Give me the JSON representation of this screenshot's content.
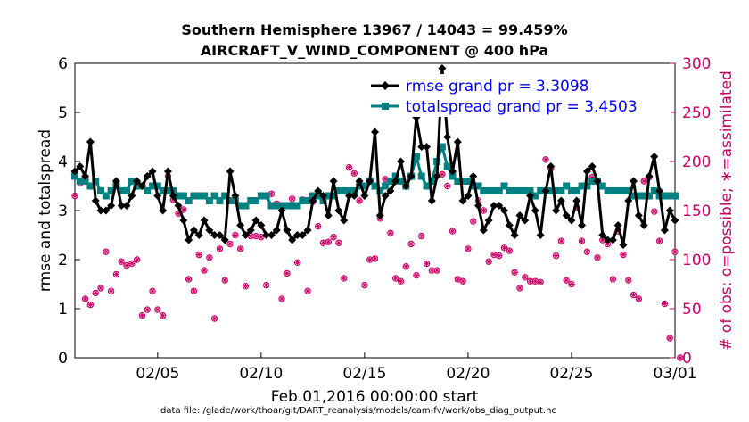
{
  "chart_data": {
    "type": "line",
    "title": "Southern Hemisphere 13967 / 14043 = 99.459%",
    "subtitle": "AIRCRAFT_V_WIND_COMPONENT @ 400 hPa",
    "ylabel": "rmse and totalspread",
    "ylabel_right": "# of obs: o=possible; ∗=assimilated",
    "xlabel": "Feb.01,2016 00:00:00 start",
    "footer": "data file: /glade/work/thoar/git/DART_reanalysis/models/cam-fv/work/obs_diag_output.nc",
    "x_range": [
      1,
      30
    ],
    "x_ticks": [
      {
        "x": 5,
        "label": "02/05"
      },
      {
        "x": 10,
        "label": "02/10"
      },
      {
        "x": 15,
        "label": "02/15"
      },
      {
        "x": 20,
        "label": "02/20"
      },
      {
        "x": 25,
        "label": "02/25"
      },
      {
        "x": 30,
        "label": "03/01"
      }
    ],
    "ylim": [
      0,
      6
    ],
    "y_ticks": [
      "0",
      "1",
      "2",
      "3",
      "4",
      "5",
      "6"
    ],
    "ylim_right": [
      0,
      300
    ],
    "y_ticks_right": [
      "0",
      "50",
      "100",
      "150",
      "200",
      "250",
      "300"
    ],
    "legend_position": "top-right",
    "series": [
      {
        "name": "rmse grand pr = 3.3098",
        "color": "#000000",
        "marker": "diamond",
        "values": [
          3.8,
          3.9,
          3.7,
          4.4,
          3.2,
          3.0,
          3.0,
          3.1,
          3.6,
          3.1,
          3.1,
          3.3,
          3.6,
          3.5,
          3.7,
          3.8,
          3.3,
          3.0,
          3.8,
          3.3,
          3.1,
          2.8,
          2.4,
          2.6,
          2.5,
          2.8,
          2.6,
          2.5,
          2.5,
          2.4,
          3.8,
          3.3,
          2.7,
          2.5,
          2.6,
          2.8,
          2.7,
          2.5,
          2.5,
          2.6,
          3.0,
          2.6,
          2.4,
          2.5,
          2.5,
          2.6,
          3.2,
          3.4,
          3.3,
          2.9,
          3.6,
          3.0,
          2.8,
          3.3,
          3.3,
          3.6,
          3.3,
          3.6,
          4.6,
          2.9,
          3.3,
          3.4,
          3.6,
          4.0,
          3.5,
          3.7,
          4.9,
          4.3,
          4.3,
          3.2,
          3.7,
          5.9,
          4.5,
          3.8,
          4.4,
          3.2,
          3.3,
          3.7,
          3.1,
          2.6,
          2.8,
          3.1,
          3.1,
          3.0,
          2.7,
          2.5,
          2.9,
          2.8,
          3.3,
          3.0,
          2.5,
          3.4,
          3.9,
          3.0,
          3.2,
          2.9,
          2.8,
          3.2,
          2.7,
          3.8,
          3.9,
          3.6,
          2.5,
          2.4,
          2.4,
          2.7,
          2.3,
          3.2,
          3.6,
          2.9,
          2.7,
          3.7,
          4.1,
          3.4,
          2.6,
          3.0,
          2.8
        ]
      },
      {
        "name": "totalspread grand pr = 3.4503",
        "color": "#008080",
        "marker": "square",
        "values": [
          3.7,
          3.6,
          3.6,
          3.5,
          3.6,
          3.4,
          3.3,
          3.4,
          3.5,
          3.4,
          3.4,
          3.6,
          3.5,
          3.5,
          3.4,
          3.5,
          3.5,
          3.4,
          3.4,
          3.4,
          3.3,
          3.3,
          3.2,
          3.3,
          3.3,
          3.3,
          3.2,
          3.3,
          3.2,
          3.3,
          3.2,
          3.2,
          3.1,
          3.1,
          3.2,
          3.2,
          3.3,
          3.3,
          3.1,
          3.1,
          3.1,
          3.1,
          3.1,
          3.1,
          3.2,
          3.2,
          3.3,
          3.3,
          3.2,
          3.3,
          3.3,
          3.4,
          3.4,
          3.4,
          3.4,
          3.5,
          3.5,
          3.6,
          3.5,
          3.4,
          3.5,
          3.6,
          3.7,
          3.6,
          3.5,
          3.7,
          4.1,
          3.7,
          3.5,
          3.6,
          4.0,
          4.3,
          3.9,
          3.7,
          3.6,
          3.6,
          3.6,
          3.5,
          3.5,
          3.4,
          3.4,
          3.4,
          3.4,
          3.5,
          3.4,
          3.4,
          3.4,
          3.4,
          3.4,
          3.3,
          3.4,
          3.4,
          3.4,
          3.4,
          3.4,
          3.5,
          3.4,
          3.4,
          3.5,
          3.5,
          3.6,
          3.6,
          3.5,
          3.4,
          3.4,
          3.4,
          3.4,
          3.4,
          3.3,
          3.3,
          3.3,
          3.3,
          3.4,
          3.3,
          3.3,
          3.3,
          3.3
        ]
      }
    ],
    "obs_possible": [
      165,
      178,
      60,
      54,
      66,
      71,
      108,
      68,
      85,
      98,
      94,
      96,
      100,
      43,
      49,
      68,
      49,
      43,
      185,
      161,
      147,
      151,
      80,
      68,
      105,
      89,
      102,
      40,
      111,
      79,
      116,
      125,
      111,
      73,
      124,
      124,
      123,
      74,
      167,
      157,
      60,
      86,
      162,
      97,
      161,
      68,
      159,
      134,
      117,
      118,
      123,
      117,
      81,
      194,
      188,
      160,
      74,
      100,
      101,
      142,
      182,
      127,
      81,
      78,
      93,
      116,
      84,
      124,
      96,
      89,
      89,
      187,
      175,
      129,
      80,
      78,
      111,
      139,
      160,
      150,
      98,
      105,
      104,
      112,
      109,
      87,
      71,
      82,
      78,
      78,
      77,
      202,
      193,
      104,
      119,
      79,
      75,
      153,
      119,
      108,
      184,
      102,
      120,
      116,
      80,
      129,
      105,
      79,
      64,
      60,
      180,
      184,
      149,
      119,
      55,
      20,
      108,
      0
    ]
  }
}
